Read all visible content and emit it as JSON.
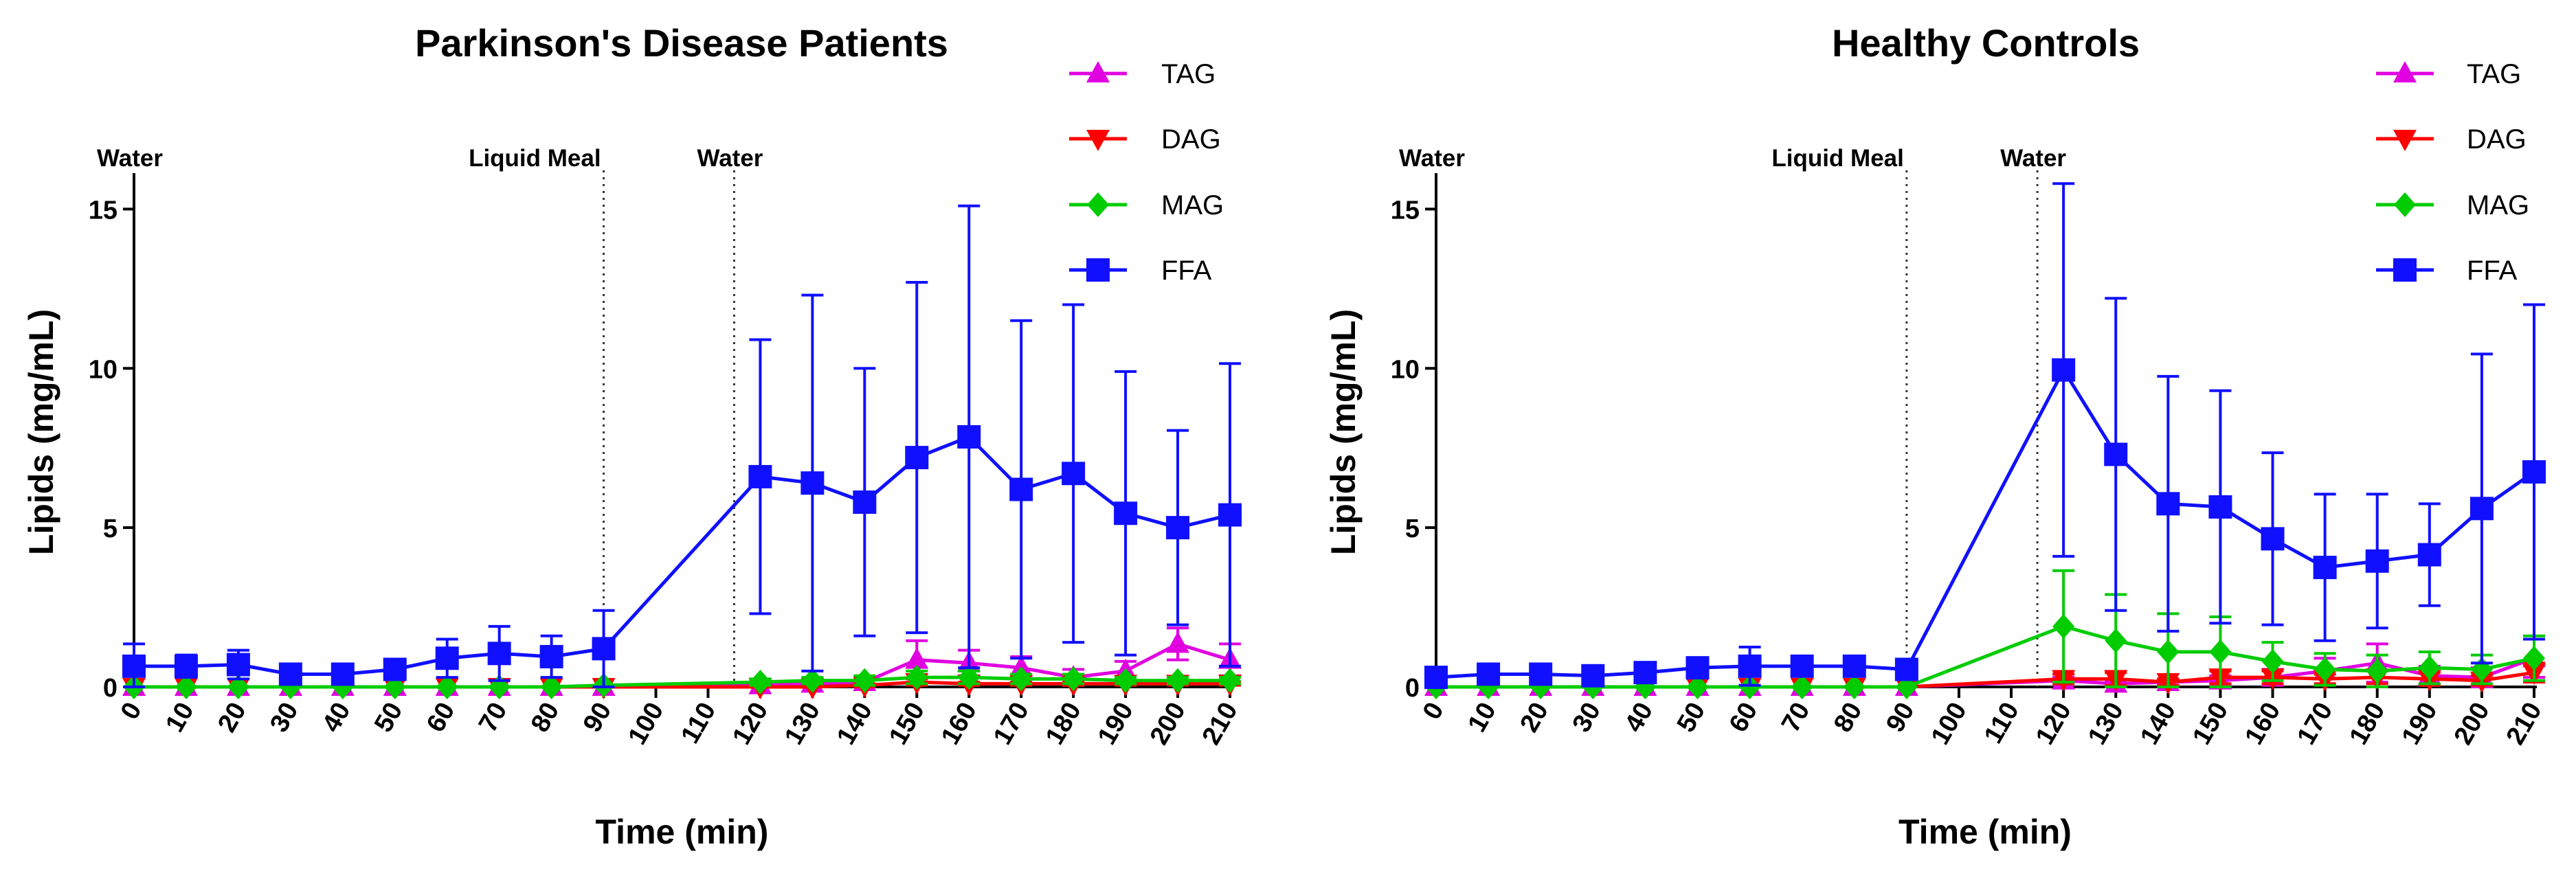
{
  "chart_data": [
    {
      "type": "line",
      "title": "Parkinson's Disease Patients",
      "xlabel": "Time (min)",
      "ylabel": "Lipids (mg/mL)",
      "x_ticks": [
        0,
        10,
        20,
        30,
        40,
        50,
        60,
        70,
        80,
        90,
        100,
        110,
        120,
        130,
        140,
        150,
        160,
        170,
        180,
        190,
        200,
        210
      ],
      "y_ticks": [
        0,
        5,
        10,
        15
      ],
      "xlim": [
        0,
        210
      ],
      "ylim": [
        0,
        16
      ],
      "legend_position": "top-right",
      "annotations": [
        {
          "x": 0,
          "text": "Water"
        },
        {
          "x": 90,
          "text": "Liquid Meal"
        },
        {
          "x": 115,
          "text": "Water"
        }
      ],
      "series": [
        {
          "name": "TAG",
          "color": "#e000e0",
          "marker": "triangle-up",
          "x": [
            0,
            10,
            20,
            30,
            40,
            50,
            60,
            70,
            80,
            90,
            120,
            130,
            140,
            150,
            160,
            170,
            180,
            190,
            200,
            210
          ],
          "values": [
            0,
            0,
            0,
            0,
            0,
            0,
            0,
            0,
            0,
            0,
            0.05,
            0.1,
            0.15,
            0.85,
            0.75,
            0.6,
            0.3,
            0.5,
            1.35,
            0.85
          ],
          "err": [
            0,
            0,
            0,
            0,
            0,
            0,
            0,
            0,
            0,
            0,
            0.05,
            0.1,
            0.1,
            0.6,
            0.4,
            0.35,
            0.25,
            0.3,
            0.5,
            0.5
          ]
        },
        {
          "name": "DAG",
          "color": "#ff0000",
          "marker": "triangle-down",
          "x": [
            0,
            10,
            20,
            30,
            40,
            50,
            60,
            70,
            80,
            90,
            120,
            130,
            140,
            150,
            160,
            170,
            180,
            190,
            200,
            210
          ],
          "values": [
            0,
            0,
            0,
            0,
            0,
            0,
            0,
            0,
            0,
            0,
            0,
            0,
            0.05,
            0.15,
            0.1,
            0.1,
            0.1,
            0.1,
            0.1,
            0.1
          ],
          "err": [
            0,
            0,
            0,
            0,
            0,
            0,
            0,
            0,
            0,
            0,
            0,
            0,
            0.05,
            0.1,
            0.05,
            0.05,
            0.05,
            0.05,
            0.05,
            0.05
          ]
        },
        {
          "name": "MAG",
          "color": "#00cc00",
          "marker": "diamond",
          "x": [
            0,
            10,
            20,
            30,
            40,
            50,
            60,
            70,
            80,
            90,
            120,
            130,
            140,
            150,
            160,
            170,
            180,
            190,
            200,
            210
          ],
          "values": [
            0,
            0,
            0,
            0,
            0,
            0,
            0,
            0,
            0,
            0.05,
            0.15,
            0.2,
            0.2,
            0.3,
            0.3,
            0.25,
            0.25,
            0.2,
            0.2,
            0.2
          ],
          "err": [
            0,
            0,
            0,
            0,
            0,
            0,
            0,
            0,
            0,
            0,
            0.1,
            0.1,
            0.15,
            0.2,
            0.2,
            0.15,
            0.15,
            0.1,
            0.1,
            0.1
          ]
        },
        {
          "name": "FFA",
          "color": "#1010ff",
          "marker": "square",
          "x": [
            0,
            10,
            20,
            30,
            40,
            50,
            60,
            70,
            80,
            90,
            120,
            130,
            140,
            150,
            160,
            170,
            180,
            190,
            200,
            210
          ],
          "values": [
            0.65,
            0.65,
            0.7,
            0.4,
            0.4,
            0.55,
            0.9,
            1.05,
            0.95,
            1.2,
            6.6,
            6.4,
            5.8,
            7.2,
            7.85,
            6.2,
            6.7,
            5.45,
            5.0,
            5.4
          ],
          "err": [
            0.7,
            0.35,
            0.45,
            0.2,
            0.2,
            0.3,
            0.6,
            0.85,
            0.65,
            1.2,
            4.3,
            5.9,
            4.2,
            5.5,
            7.25,
            5.3,
            5.3,
            4.45,
            3.05,
            4.75
          ]
        }
      ]
    },
    {
      "type": "line",
      "title": "Healthy Controls",
      "xlabel": "Time (min)",
      "ylabel": "Lipids (mg/mL)",
      "x_ticks": [
        0,
        10,
        20,
        30,
        40,
        50,
        60,
        70,
        80,
        90,
        100,
        110,
        120,
        130,
        140,
        150,
        160,
        170,
        180,
        190,
        200,
        210
      ],
      "y_ticks": [
        0,
        5,
        10,
        15
      ],
      "xlim": [
        0,
        210
      ],
      "ylim": [
        0,
        16
      ],
      "legend_position": "top-right",
      "annotations": [
        {
          "x": 0,
          "text": "Water"
        },
        {
          "x": 90,
          "text": "Liquid Meal"
        },
        {
          "x": 115,
          "text": "Water"
        }
      ],
      "series": [
        {
          "name": "TAG",
          "color": "#e000e0",
          "marker": "triangle-up",
          "x": [
            0,
            10,
            20,
            30,
            40,
            50,
            60,
            70,
            80,
            90,
            120,
            130,
            140,
            150,
            160,
            170,
            180,
            190,
            200,
            210
          ],
          "values": [
            0,
            0,
            0,
            0,
            0,
            0,
            0,
            0,
            0,
            0,
            0.2,
            0.1,
            0.15,
            0.2,
            0.3,
            0.5,
            0.75,
            0.35,
            0.3,
            0.9
          ],
          "err": [
            0,
            0,
            0,
            0,
            0,
            0,
            0,
            0,
            0,
            0,
            0.1,
            0.1,
            0.1,
            0.15,
            0.25,
            0.4,
            0.6,
            0.3,
            0.3,
            0.6
          ]
        },
        {
          "name": "DAG",
          "color": "#ff0000",
          "marker": "triangle-down",
          "x": [
            0,
            10,
            20,
            30,
            40,
            50,
            60,
            70,
            80,
            90,
            120,
            130,
            140,
            150,
            160,
            170,
            180,
            190,
            200,
            210
          ],
          "values": [
            0,
            0,
            0,
            0,
            0,
            0,
            0,
            0,
            0,
            0,
            0.25,
            0.25,
            0.15,
            0.3,
            0.3,
            0.25,
            0.3,
            0.25,
            0.2,
            0.45
          ],
          "err": [
            0,
            0,
            0,
            0,
            0,
            0,
            0,
            0,
            0,
            0,
            0.15,
            0.2,
            0.1,
            0.2,
            0.2,
            0.15,
            0.2,
            0.2,
            0.15,
            0.3
          ]
        },
        {
          "name": "MAG",
          "color": "#00cc00",
          "marker": "diamond",
          "x": [
            0,
            10,
            20,
            30,
            40,
            50,
            60,
            70,
            80,
            90,
            120,
            130,
            140,
            150,
            160,
            170,
            180,
            190,
            200,
            210
          ],
          "values": [
            0,
            0,
            0,
            0,
            0,
            0,
            0,
            0,
            0,
            0,
            1.9,
            1.45,
            1.1,
            1.1,
            0.8,
            0.55,
            0.5,
            0.6,
            0.55,
            0.9
          ],
          "err": [
            0,
            0,
            0,
            0,
            0,
            0,
            0,
            0,
            0,
            0,
            1.75,
            1.45,
            1.2,
            1.1,
            0.6,
            0.5,
            0.5,
            0.5,
            0.45,
            0.7
          ]
        },
        {
          "name": "FFA",
          "color": "#1010ff",
          "marker": "square",
          "x": [
            0,
            10,
            20,
            30,
            40,
            50,
            60,
            70,
            80,
            90,
            120,
            130,
            140,
            150,
            160,
            170,
            180,
            190,
            200,
            210
          ],
          "values": [
            0.3,
            0.4,
            0.4,
            0.35,
            0.45,
            0.6,
            0.65,
            0.65,
            0.65,
            0.55,
            9.95,
            7.3,
            5.75,
            5.65,
            4.65,
            3.75,
            3.95,
            4.15,
            5.6,
            6.75
          ],
          "err": [
            0.2,
            0.2,
            0.2,
            0.2,
            0.2,
            0.3,
            0.6,
            0.3,
            0.2,
            0.2,
            5.85,
            4.9,
            4.0,
            3.65,
            2.7,
            2.3,
            2.1,
            1.6,
            4.85,
            5.25
          ]
        }
      ]
    }
  ]
}
